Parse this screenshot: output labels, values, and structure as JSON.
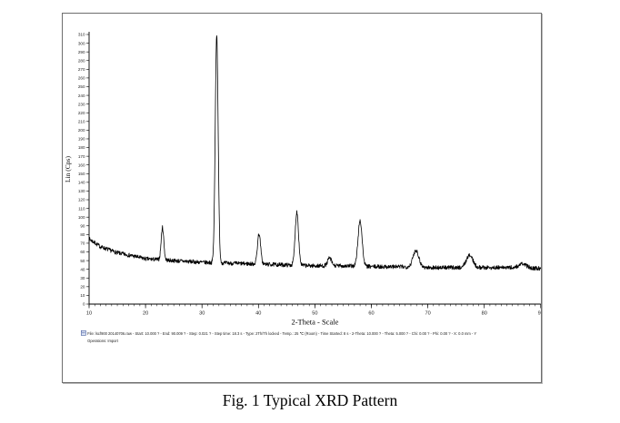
{
  "figure": {
    "caption": "Fig. 1 Typical XRD Pattern"
  },
  "chart_data": {
    "type": "line",
    "title": "",
    "xlabel": "2-Theta - Scale",
    "ylabel": "Lin (Cps)",
    "xlim": [
      10,
      90
    ],
    "ylim": [
      0,
      310
    ],
    "grid": "off",
    "legend": "none",
    "line_color": "#000000",
    "axis_color": "#000000",
    "tick_label_color": "#222222",
    "x_major_tick_interval": 10,
    "x_minor_tick_interval": 1,
    "y_tick_interval": 10,
    "x_tick_labels": [
      "10",
      "20",
      "30",
      "40",
      "50",
      "60",
      "70",
      "80",
      "90"
    ],
    "y_tick_labels": [
      "0",
      "10",
      "20",
      "30",
      "40",
      "50",
      "60",
      "70",
      "80",
      "90",
      "100",
      "110",
      "120",
      "130",
      "140",
      "150",
      "160",
      "170",
      "180",
      "190",
      "200",
      "210",
      "220",
      "230",
      "240",
      "250",
      "260",
      "270",
      "280",
      "290",
      "300",
      "310"
    ],
    "baseline_points": [
      [
        10,
        75
      ],
      [
        12,
        66
      ],
      [
        15,
        59
      ],
      [
        18,
        55
      ],
      [
        20,
        52
      ],
      [
        25,
        50
      ],
      [
        30,
        48
      ],
      [
        35,
        47
      ],
      [
        40,
        46
      ],
      [
        45,
        45
      ],
      [
        50,
        44
      ],
      [
        55,
        44
      ],
      [
        60,
        43
      ],
      [
        65,
        43
      ],
      [
        70,
        42
      ],
      [
        75,
        42
      ],
      [
        80,
        42
      ],
      [
        85,
        42
      ],
      [
        90,
        41
      ]
    ],
    "noise_amplitude_cps": 2.4,
    "peaks": [
      {
        "two_theta": 23.0,
        "intensity_cps": 88,
        "fwhm_deg": 0.55
      },
      {
        "two_theta": 32.6,
        "intensity_cps": 310,
        "fwhm_deg": 0.6
      },
      {
        "two_theta": 40.1,
        "intensity_cps": 81,
        "fwhm_deg": 0.65
      },
      {
        "two_theta": 46.8,
        "intensity_cps": 106,
        "fwhm_deg": 0.7
      },
      {
        "two_theta": 52.6,
        "intensity_cps": 53,
        "fwhm_deg": 0.8
      },
      {
        "two_theta": 58.0,
        "intensity_cps": 96,
        "fwhm_deg": 0.85
      },
      {
        "two_theta": 67.9,
        "intensity_cps": 62,
        "fwhm_deg": 1.2
      },
      {
        "two_theta": 77.4,
        "intensity_cps": 56,
        "fwhm_deg": 1.4
      },
      {
        "two_theta": 86.8,
        "intensity_cps": 46,
        "fwhm_deg": 1.6
      }
    ]
  },
  "metadata_bar": {
    "line1": "File: lscf900 20140706.raw - Start: 10.000 ? - End: 90.009 ? - Step: 0.021 ? - Step time: 18.3 s - Type: 2Th/Th locked - Temp.: 25 ℃ (Room) - Time Started: 8 s - 2-Theta: 10.000 ? - Theta: 5.000 ? - Chi: 0.00 ? - Phi: 0.00 ? - X: 0.0 mm - Y",
    "line2": "Operations: Import"
  }
}
